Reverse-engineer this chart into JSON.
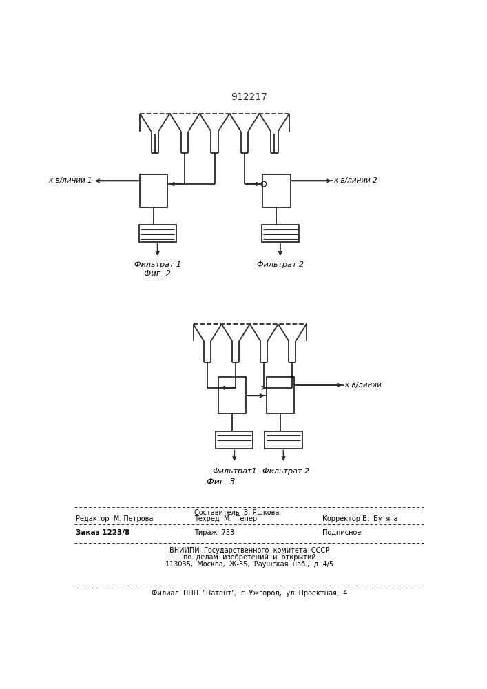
{
  "title": "912217",
  "background_color": "#ffffff",
  "line_color": "#2a2a2a",
  "fig2_label": "Фиг. 2",
  "fig3_label": "Фиг. 3",
  "filtrat1_label": "Фильтрат 1",
  "filtrat2_label": "Фильтрат 2",
  "filtrat12_label": "Фильтрат1",
  "filtrat22_label": "Фильтрат 2",
  "k_vlini1": "к в/линии 1",
  "k_vlini2": "к в/линии 2",
  "k_vlini": "к в/линии",
  "footer_editor": "Редактор  М. Петрова",
  "footer_sostavitel": "Составитель  З. Яшкова",
  "footer_tekhred": "Техред  М.  Тепер",
  "footer_korrektor": "Корректор В.  Бутяга",
  "footer_zakaz": "Заказ 1223/8",
  "footer_tirazh": "Тираж  733",
  "footer_podpisnoe": "Подписное",
  "footer_vniip1": "ВНИИПИ  Государственного  комитета  СССР",
  "footer_vniip2": "по  делам  изобретений  и  открытий",
  "footer_vniip3": "113035,  Москва,  Ж-35,  Раушская  наб.,  д. 4/5",
  "footer_filial": "Филиал  ППП  \"Патент\",  г. Ужгород,  ул. Проектная,  4"
}
